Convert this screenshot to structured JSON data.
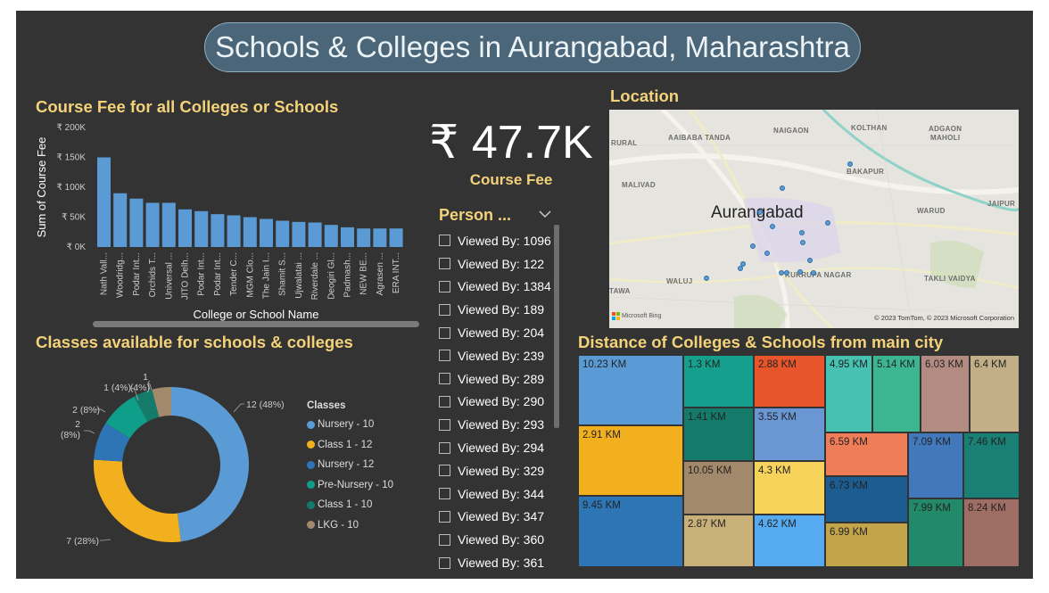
{
  "title": "Schools & Colleges in Aurangabad, Maharashtra",
  "bar_chart": {
    "title": "Course Fee for all Colleges or Schools",
    "ylabel": "Sum of Course Fee",
    "xlabel": "College or School Name",
    "ticks": [
      "₹ 0K",
      "₹ 50K",
      "₹ 100K",
      "₹ 150K",
      "₹ 200K"
    ]
  },
  "chart_data": [
    {
      "type": "bar",
      "title": "Course Fee for all Colleges or Schools",
      "xlabel": "College or School Name",
      "ylabel": "Sum of Course Fee",
      "ylim": [
        0,
        200000
      ],
      "categories": [
        "Nath Vall...",
        "Woodridg...",
        "Podar Int...",
        "Orchids T...",
        "Universal ...",
        "JITO Delh...",
        "Podar Int...",
        "Podar Int...",
        "Tender C...",
        "MGM Clo...",
        "The Jain I...",
        "Shamit S...",
        "Ujwalatai ...",
        "Riverdale ...",
        "Deogiri Gl...",
        "Padmash...",
        "NEW BE...",
        "Agrasen ...",
        "ERA INT..."
      ],
      "values": [
        150000,
        90000,
        81000,
        74000,
        74000,
        63000,
        60000,
        55000,
        53000,
        50000,
        47000,
        44000,
        42000,
        41000,
        37000,
        33000,
        31000,
        31000,
        31000
      ]
    },
    {
      "type": "pie",
      "title": "Classes available for schools & colleges",
      "legend_title": "Classes",
      "categories": [
        "Nursery - 10",
        "Class 1 - 12",
        "Nursery - 12",
        "Pre-Nursery - 10",
        "Class 1 - 10",
        "LKG - 10"
      ],
      "values": [
        12,
        7,
        2,
        2,
        1,
        1
      ]
    },
    {
      "type": "heatmap",
      "title": "Distance of Colleges & Schools from main city",
      "labels": [
        "10.23 KM",
        "2.91 KM",
        "9.45 KM",
        "1.3 KM",
        "1.41 KM",
        "10.05 KM",
        "2.87 KM",
        "2.88 KM",
        "3.55 KM",
        "4.3 KM",
        "4.62 KM",
        "4.95 KM",
        "5.14 KM",
        "6.03 KM",
        "6.4 KM",
        "6.59 KM",
        "6.73 KM",
        "6.99 KM",
        "7.09 KM",
        "7.46 KM",
        "7.99 KM",
        "8.24 KM"
      ]
    }
  ],
  "donut_labels": [
    "12 (48%)",
    "7 (28%)",
    "2",
    "(8%)",
    "2 (8%)",
    "1 (4%)",
    "(4%)",
    "1"
  ],
  "kpi": {
    "value": "₹ 47.7K",
    "label": "Course Fee"
  },
  "slicer": {
    "title": "Person ...",
    "items": [
      "Viewed By: 1096",
      "Viewed By: 122",
      "Viewed By: 1384",
      "Viewed By: 189",
      "Viewed By: 204",
      "Viewed By: 239",
      "Viewed By: 289",
      "Viewed By: 290",
      "Viewed By: 293",
      "Viewed By: 294",
      "Viewed By: 329",
      "Viewed By: 344",
      "Viewed By: 347",
      "Viewed By: 360",
      "Viewed By: 361"
    ]
  },
  "map": {
    "title": "Location",
    "city": "Aurangabad",
    "places": [
      "NAIGAON",
      "KOLTHAN",
      "ADGAON",
      "MAHOLI",
      "AAIBABA TANDA",
      "RURAL",
      "BAKAPUR",
      "MALIVAD",
      "WARUD",
      "JAIPUR",
      "TAKLI VAIDYA",
      "WALUJ",
      "TAWA",
      "KUKRUPA NAGAR"
    ],
    "attribution": "© 2023 TomTom, © 2023 Microsoft Corporation",
    "brand": "Microsoft Bing"
  },
  "colors": {
    "background": "#333333",
    "title_accent": "#f3d27a",
    "bar": "#5b9bd5",
    "donut": [
      "#5b9bd5",
      "#f2b01e",
      "#2e75b6",
      "#0f9e8a",
      "#147a6a",
      "#a3896b"
    ],
    "treemap": [
      "#5b9bd5",
      "#f2b01e",
      "#2e75b6",
      "#14a08c",
      "#147a6a",
      "#a3896b",
      "#c9b079",
      "#e8552a",
      "#6a96d4",
      "#f7d35c",
      "#56aaf0",
      "#47c1b1",
      "#3cb591",
      "#b38b80",
      "#c2ae87",
      "#ef7d57",
      "#1c5c91",
      "#c2a44a",
      "#4279bd",
      "#1a7f74",
      "#238a69",
      "#9e6d63"
    ]
  }
}
